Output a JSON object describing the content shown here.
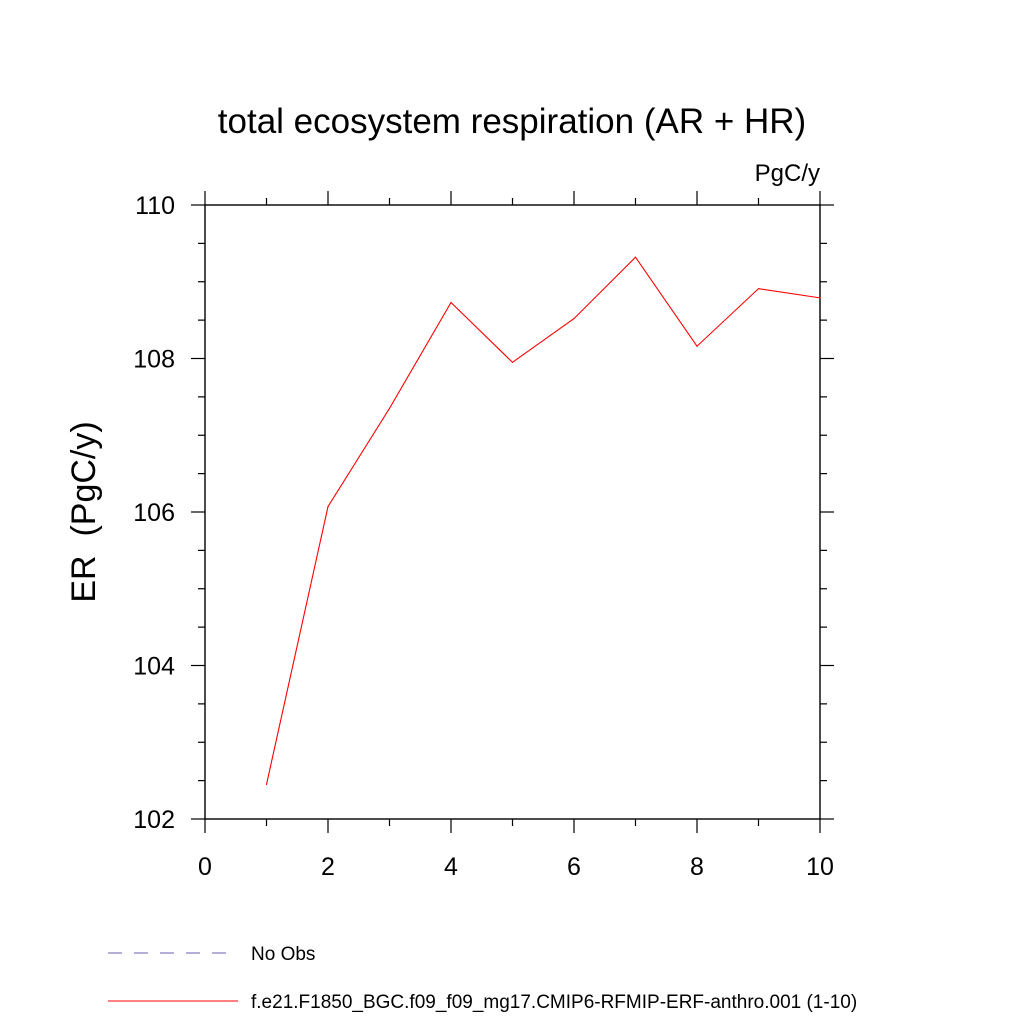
{
  "chart_data": {
    "type": "line",
    "title": "total ecosystem respiration (AR + HR)",
    "units_label": "PgC/y",
    "ylabel": "ER  (PgC/y)",
    "xlabel": "",
    "xlim": [
      0,
      10
    ],
    "ylim": [
      102,
      110
    ],
    "x_ticks": [
      0,
      2,
      4,
      6,
      8,
      10
    ],
    "x_tick_labels": [
      "0",
      "2",
      "4",
      "6",
      "8",
      "10"
    ],
    "y_ticks": [
      102,
      104,
      106,
      108,
      110
    ],
    "y_tick_labels": [
      "102",
      "104",
      "106",
      "108",
      "110"
    ],
    "x_minor_step": 1,
    "y_minor_step": 0.5,
    "grid": false,
    "legend_position": "bottom-left",
    "series": [
      {
        "name": "f.e21.F1850_BGC.f09_f09_mg17.CMIP6-RFMIP-ERF-anthro.001 (1-10)",
        "color": "#ff0000",
        "dash": "solid",
        "x": [
          1,
          2,
          3,
          4,
          5,
          6,
          7,
          8,
          9,
          10
        ],
        "y": [
          102.45,
          106.07,
          107.35,
          108.73,
          107.95,
          108.52,
          109.32,
          108.16,
          108.91,
          108.79
        ]
      }
    ],
    "legend": [
      {
        "label": "No Obs",
        "color": "#6b5fb0",
        "dash": "dashed"
      },
      {
        "label": "f.e21.F1850_BGC.f09_f09_mg17.CMIP6-RFMIP-ERF-anthro.001 (1-10)",
        "color": "#ff0000",
        "dash": "solid"
      }
    ]
  }
}
